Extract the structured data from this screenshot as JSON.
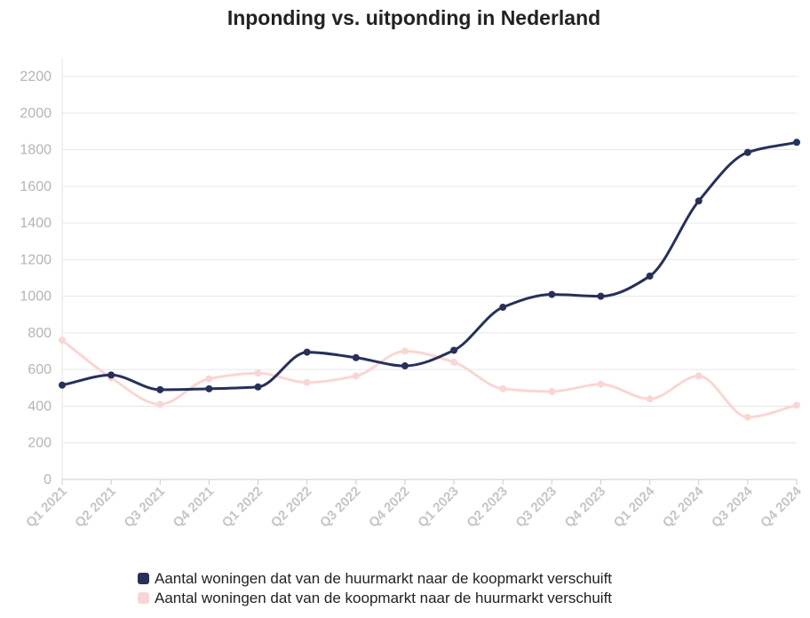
{
  "chart_data": {
    "type": "line",
    "title": "Inponding vs. uitponding in Nederland",
    "xlabel": "",
    "ylabel": "",
    "ylim": [
      0,
      2200
    ],
    "yticks": [
      0,
      200,
      400,
      600,
      800,
      1000,
      1200,
      1400,
      1600,
      1800,
      2000,
      2200
    ],
    "grid": true,
    "legend_position": "bottom",
    "categories": [
      "Q1 2021",
      "Q2 2021",
      "Q3 2021",
      "Q4 2021",
      "Q1 2022",
      "Q2 2022",
      "Q3 2022",
      "Q4 2022",
      "Q1 2023",
      "Q2 2023",
      "Q3 2023",
      "Q4 2023",
      "Q1 2024",
      "Q2 2024",
      "Q3 2024",
      "Q4 2024"
    ],
    "series": [
      {
        "name": "Aantal woningen dat van de huurmarkt naar de koopmarkt verschuift",
        "color": "#26305a",
        "values": [
          515,
          570,
          490,
          495,
          505,
          695,
          665,
          620,
          705,
          940,
          1010,
          1000,
          1110,
          1520,
          1785,
          1840
        ]
      },
      {
        "name": "Aantal woningen dat van de koopmarkt naar de huurmarkt verschuift",
        "color": "#fad6d3",
        "values": [
          760,
          555,
          410,
          550,
          580,
          530,
          565,
          700,
          640,
          495,
          480,
          520,
          440,
          565,
          340,
          405
        ]
      }
    ]
  }
}
